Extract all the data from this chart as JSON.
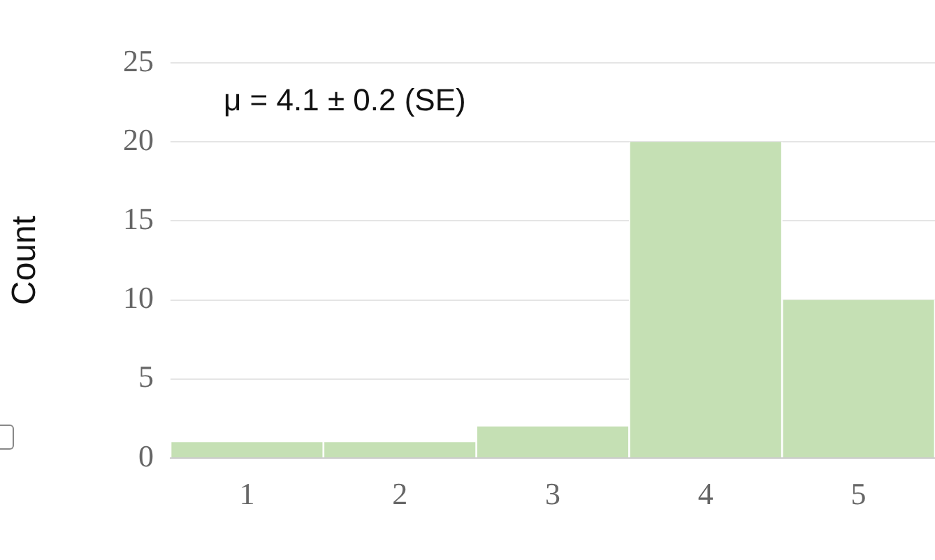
{
  "chart_data": {
    "type": "histogram",
    "ylabel": "Count",
    "annotations": [
      "μ = 4.1 ± 0.2 (SE)"
    ],
    "bins": [
      0.5,
      1.5,
      2.5,
      3.5,
      4.5,
      5.5
    ],
    "values": [
      1,
      1,
      2,
      20,
      10
    ],
    "color": "#c5e0b4",
    "xlim": [
      0.5,
      5.5
    ],
    "xticks": [
      1,
      2,
      3,
      4,
      5
    ],
    "ylim": [
      0,
      25
    ],
    "yticks": [
      0,
      5,
      10,
      15,
      20,
      25
    ],
    "grid": "y",
    "legend": false
  }
}
